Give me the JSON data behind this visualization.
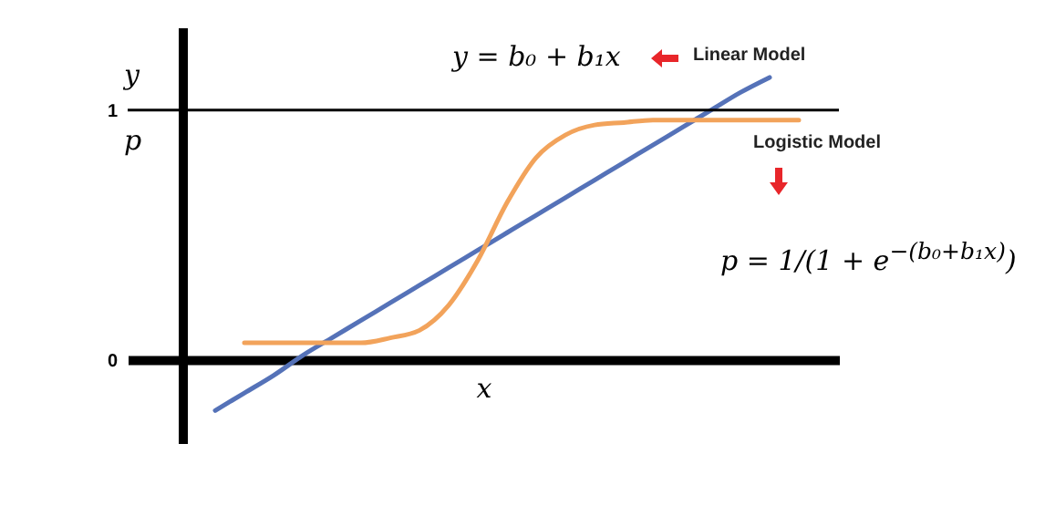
{
  "chart_data": {
    "type": "line",
    "xlabel": "x",
    "ylabel": "y",
    "categories": [
      null,
      null,
      null,
      null,
      null,
      null,
      null,
      null,
      null,
      null,
      null,
      null,
      null,
      null,
      null,
      null,
      null,
      null,
      null,
      null,
      null
    ],
    "series": [
      {
        "color": "#5572b8",
        "values": [
          -0.2,
          -0.13,
          -0.06,
          0.02,
          0.09,
          0.16,
          0.23,
          0.3,
          0.37,
          0.44,
          0.51,
          0.58,
          0.65,
          0.72,
          0.79,
          0.86,
          0.93,
          1.0,
          1.07,
          1.13,
          null
        ]
      },
      {
        "color": "#f2a35b",
        "values": [
          null,
          0.07,
          0.07,
          0.07,
          0.07,
          0.07,
          0.09,
          0.12,
          0.22,
          0.4,
          0.63,
          0.81,
          0.9,
          0.94,
          0.95,
          0.96,
          0.96,
          0.96,
          0.96,
          0.96,
          0.96
        ]
      }
    ],
    "ylim": [
      -0.33,
      1.33
    ],
    "yticks": [
      0,
      1
    ],
    "tick_labels": "y",
    "ref_lines": [
      {
        "axis": "y",
        "value": 1,
        "color": "#000000"
      }
    ],
    "annotations": [
      "p",
      "y = b₀ + b₁x",
      "Linear Model",
      "Logistic Model",
      "p = 1/(1 + e$^{−(b₀+b₁x)}$)"
    ]
  }
}
